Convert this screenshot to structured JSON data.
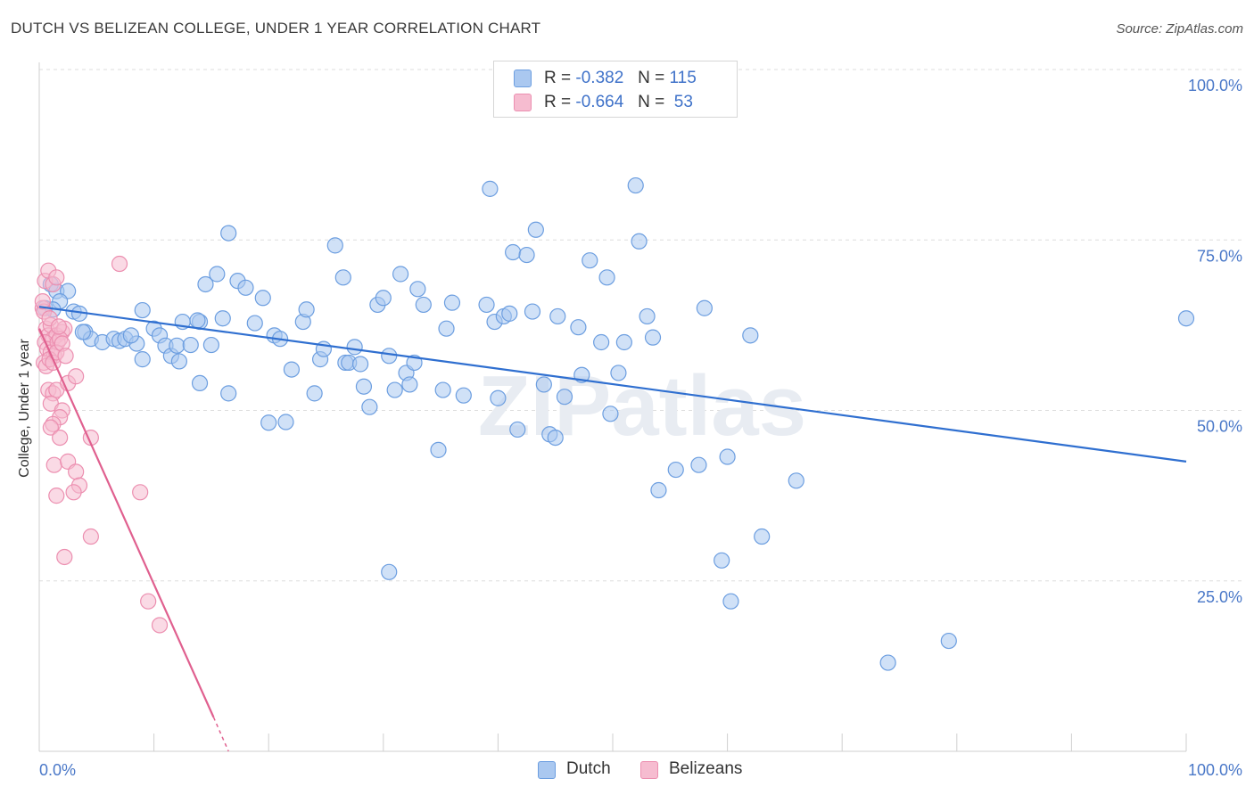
{
  "title": "DUTCH VS BELIZEAN COLLEGE, UNDER 1 YEAR CORRELATION CHART",
  "source": "Source: ZipAtlas.com",
  "watermark": "ZIPatlas",
  "legend": {
    "dutch": {
      "r_label": "R =",
      "r_value": "-0.382",
      "n_label": "N =",
      "n_value": "115"
    },
    "belizeans": {
      "r_label": "R =",
      "r_value": "-0.664",
      "n_label": "N =",
      "n_value": "53"
    }
  },
  "colors": {
    "dutch_fill": "#aac8f0",
    "dutch_stroke": "#6c9ee0",
    "dutch_line": "#2f6fd0",
    "belizean_fill": "#f6bcd0",
    "belizean_stroke": "#ec8fb0",
    "belizean_line": "#e0608f",
    "tick_text": "#4a78c8",
    "grid": "#dddddd"
  },
  "chart_data": {
    "type": "scatter",
    "xlabel": "",
    "ylabel": "College, Under 1 year",
    "xlim": [
      0,
      100
    ],
    "ylim": [
      0,
      100
    ],
    "x_tick_labels": [
      "0.0%",
      "100.0%"
    ],
    "y_ticks": [
      25,
      50,
      75,
      100
    ],
    "y_tick_labels": [
      "25.0%",
      "50.0%",
      "75.0%",
      "100.0%"
    ],
    "grid": true,
    "legend_position": "top-center",
    "series": [
      {
        "name": "Dutch",
        "points": [
          [
            1.0,
            68.5
          ],
          [
            1.5,
            67.5
          ],
          [
            2.5,
            67.5
          ],
          [
            1.8,
            66.0
          ],
          [
            3.0,
            64.5
          ],
          [
            3.5,
            64.2
          ],
          [
            0.5,
            65.0
          ],
          [
            1.2,
            64.8
          ],
          [
            4.0,
            61.5
          ],
          [
            4.5,
            60.5
          ],
          [
            5.5,
            60.0
          ],
          [
            6.5,
            60.5
          ],
          [
            7.0,
            60.2
          ],
          [
            7.5,
            60.5
          ],
          [
            8.5,
            59.8
          ],
          [
            8.0,
            61.0
          ],
          [
            9.0,
            57.5
          ],
          [
            9.0,
            64.7
          ],
          [
            10.0,
            62.0
          ],
          [
            10.5,
            61.0
          ],
          [
            11.0,
            59.5
          ],
          [
            11.5,
            58.0
          ],
          [
            12.0,
            59.5
          ],
          [
            12.2,
            57.2
          ],
          [
            12.5,
            63.0
          ],
          [
            13.2,
            59.6
          ],
          [
            14.0,
            63.0
          ],
          [
            14.0,
            54.0
          ],
          [
            14.5,
            68.5
          ],
          [
            15.0,
            59.6
          ],
          [
            15.5,
            70.0
          ],
          [
            16.0,
            63.5
          ],
          [
            16.5,
            76.0
          ],
          [
            16.5,
            52.5
          ],
          [
            17.3,
            69.0
          ],
          [
            18.0,
            68.0
          ],
          [
            18.8,
            62.8
          ],
          [
            19.5,
            66.5
          ],
          [
            20.0,
            48.2
          ],
          [
            20.5,
            61.0
          ],
          [
            21.0,
            60.5
          ],
          [
            21.5,
            48.3
          ],
          [
            22.0,
            56.0
          ],
          [
            23.0,
            63.0
          ],
          [
            23.3,
            64.8
          ],
          [
            24.0,
            52.5
          ],
          [
            24.5,
            57.5
          ],
          [
            24.8,
            59.0
          ],
          [
            25.8,
            74.2
          ],
          [
            26.5,
            69.5
          ],
          [
            26.7,
            57.0
          ],
          [
            27.0,
            57.0
          ],
          [
            27.5,
            59.3
          ],
          [
            28.0,
            56.8
          ],
          [
            28.3,
            53.5
          ],
          [
            28.8,
            50.5
          ],
          [
            29.5,
            65.5
          ],
          [
            30.0,
            66.5
          ],
          [
            30.5,
            58.0
          ],
          [
            31.0,
            53.0
          ],
          [
            31.5,
            70.0
          ],
          [
            32.0,
            55.5
          ],
          [
            32.3,
            53.8
          ],
          [
            32.7,
            57.0
          ],
          [
            33.0,
            67.8
          ],
          [
            33.5,
            65.5
          ],
          [
            34.8,
            44.2
          ],
          [
            35.2,
            53.0
          ],
          [
            35.5,
            62.0
          ],
          [
            36.0,
            65.8
          ],
          [
            37.0,
            52.2
          ],
          [
            39.0,
            65.5
          ],
          [
            39.3,
            82.5
          ],
          [
            39.7,
            63.0
          ],
          [
            40.0,
            51.8
          ],
          [
            40.5,
            63.8
          ],
          [
            41.0,
            64.2
          ],
          [
            41.3,
            73.2
          ],
          [
            41.7,
            47.2
          ],
          [
            42.5,
            72.8
          ],
          [
            43.0,
            64.5
          ],
          [
            43.3,
            76.5
          ],
          [
            44.0,
            53.8
          ],
          [
            44.5,
            46.5
          ],
          [
            45.0,
            46.0
          ],
          [
            45.2,
            63.8
          ],
          [
            45.8,
            52.0
          ],
          [
            47.0,
            62.2
          ],
          [
            47.3,
            55.2
          ],
          [
            48.0,
            72.0
          ],
          [
            49.0,
            60.0
          ],
          [
            49.5,
            69.5
          ],
          [
            49.8,
            49.5
          ],
          [
            50.5,
            55.5
          ],
          [
            51.0,
            60.0
          ],
          [
            52.0,
            83.0
          ],
          [
            52.3,
            74.8
          ],
          [
            53.0,
            63.8
          ],
          [
            53.5,
            60.7
          ],
          [
            54.0,
            38.3
          ],
          [
            55.5,
            41.3
          ],
          [
            57.5,
            42.0
          ],
          [
            58.0,
            65.0
          ],
          [
            59.5,
            28.0
          ],
          [
            60.0,
            43.2
          ],
          [
            60.3,
            22.0
          ],
          [
            62.0,
            61.0
          ],
          [
            63.0,
            31.5
          ],
          [
            66.0,
            39.7
          ],
          [
            74.0,
            13.0
          ],
          [
            79.3,
            16.2
          ],
          [
            100.0,
            63.5
          ],
          [
            30.5,
            26.3
          ],
          [
            3.8,
            61.5
          ],
          [
            13.8,
            63.2
          ]
        ]
      },
      {
        "name": "Belizeans",
        "points": [
          [
            0.5,
            69.0
          ],
          [
            0.8,
            70.5
          ],
          [
            1.2,
            68.5
          ],
          [
            1.5,
            69.5
          ],
          [
            0.3,
            65.0
          ],
          [
            0.4,
            64.5
          ],
          [
            0.6,
            62.0
          ],
          [
            0.8,
            61.0
          ],
          [
            1.0,
            62.5
          ],
          [
            1.2,
            60.5
          ],
          [
            1.5,
            61.0
          ],
          [
            2.0,
            61.5
          ],
          [
            2.2,
            62.0
          ],
          [
            0.5,
            60.0
          ],
          [
            0.7,
            59.0
          ],
          [
            1.0,
            58.5
          ],
          [
            1.3,
            58.0
          ],
          [
            1.6,
            60.0
          ],
          [
            1.8,
            60.5
          ],
          [
            0.4,
            57.0
          ],
          [
            0.6,
            56.5
          ],
          [
            0.9,
            57.5
          ],
          [
            1.2,
            57.0
          ],
          [
            1.5,
            58.5
          ],
          [
            2.0,
            59.8
          ],
          [
            0.8,
            53.0
          ],
          [
            1.2,
            52.5
          ],
          [
            1.5,
            53.0
          ],
          [
            2.5,
            54.0
          ],
          [
            3.2,
            55.0
          ],
          [
            1.0,
            51.0
          ],
          [
            2.0,
            50.0
          ],
          [
            1.8,
            49.0
          ],
          [
            1.2,
            48.0
          ],
          [
            1.0,
            47.5
          ],
          [
            1.8,
            46.0
          ],
          [
            4.5,
            46.0
          ],
          [
            1.3,
            42.0
          ],
          [
            2.5,
            42.5
          ],
          [
            3.2,
            41.0
          ],
          [
            3.5,
            39.0
          ],
          [
            3.0,
            38.0
          ],
          [
            1.5,
            37.5
          ],
          [
            8.8,
            38.0
          ],
          [
            4.5,
            31.5
          ],
          [
            2.2,
            28.5
          ],
          [
            9.5,
            22.0
          ],
          [
            10.5,
            18.5
          ],
          [
            7.0,
            71.5
          ],
          [
            0.3,
            66.0
          ],
          [
            0.9,
            63.5
          ],
          [
            2.3,
            58.0
          ],
          [
            1.7,
            62.3
          ]
        ]
      }
    ],
    "trend_lines": [
      {
        "series": "Dutch",
        "from": [
          0,
          65.2
        ],
        "to": [
          100,
          42.5
        ]
      },
      {
        "series": "Belizeans",
        "from": [
          0,
          62.0
        ],
        "to": [
          15.2,
          5.0
        ],
        "dashed_extension_to": [
          16.5,
          0
        ]
      }
    ]
  }
}
